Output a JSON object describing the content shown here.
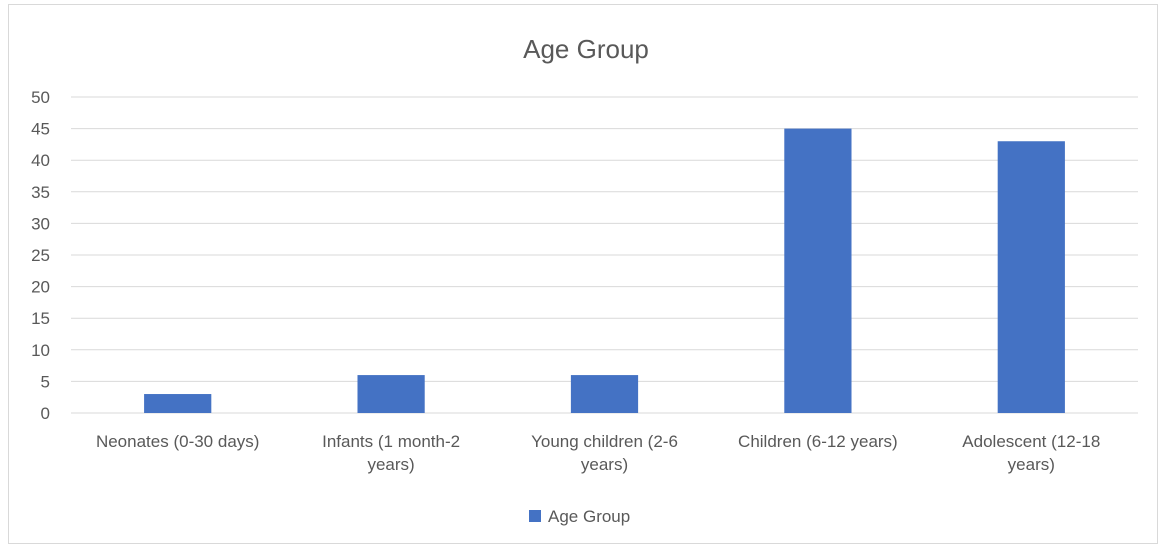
{
  "chart_data": {
    "type": "bar",
    "title": "Age Group",
    "categories": [
      [
        "Neonates (0-30 days)"
      ],
      [
        "Infants (1 month-2",
        "years)"
      ],
      [
        "Young children (2-6",
        "years)"
      ],
      [
        "Children (6-12 years)"
      ],
      [
        "Adolescent (12-18",
        "years)"
      ]
    ],
    "series": [
      {
        "name": "Age Group",
        "values": [
          3,
          6,
          6,
          45,
          43
        ],
        "color": "#4472C4"
      }
    ],
    "ylim": [
      0,
      50
    ],
    "yticks": [
      0,
      5,
      10,
      15,
      20,
      25,
      30,
      35,
      40,
      45,
      50
    ],
    "grid": true,
    "legend": "bottom-center"
  }
}
